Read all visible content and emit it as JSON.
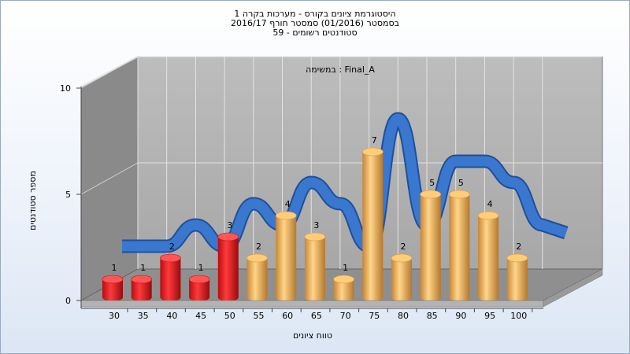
{
  "chart_data": {
    "type": "bar",
    "title": "היסטוגרמת ציונים בקורס - מערכות בקרה 1",
    "subtitle": "בסמסטר (01/2016) סמסטר חורף 2016/17",
    "subtitle2": "סטודנטים רשומים - 59",
    "annotation": "במשימה : Final_A",
    "xlabel": "טווח ציונים",
    "ylabel": "מספר סטודנטים",
    "categories": [
      "30",
      "35",
      "40",
      "45",
      "50",
      "55",
      "60",
      "65",
      "70",
      "75",
      "80",
      "85",
      "90",
      "95",
      "100"
    ],
    "values": [
      1,
      1,
      2,
      1,
      3,
      2,
      4,
      3,
      1,
      7,
      2,
      5,
      5,
      4,
      2
    ],
    "colors": [
      "#e8262a",
      "#e8262a",
      "#e8262a",
      "#e8262a",
      "#e8262a",
      "#f0b25c",
      "#f0b25c",
      "#f0b25c",
      "#f0b25c",
      "#f0b25c",
      "#f0b25c",
      "#f0b25c",
      "#f0b25c",
      "#f0b25c",
      "#f0b25c"
    ],
    "curve_color": "#3a78cf",
    "y_ticks": [
      0,
      5,
      10
    ],
    "ylim": [
      0,
      10
    ],
    "grid": true,
    "legend": "none"
  }
}
